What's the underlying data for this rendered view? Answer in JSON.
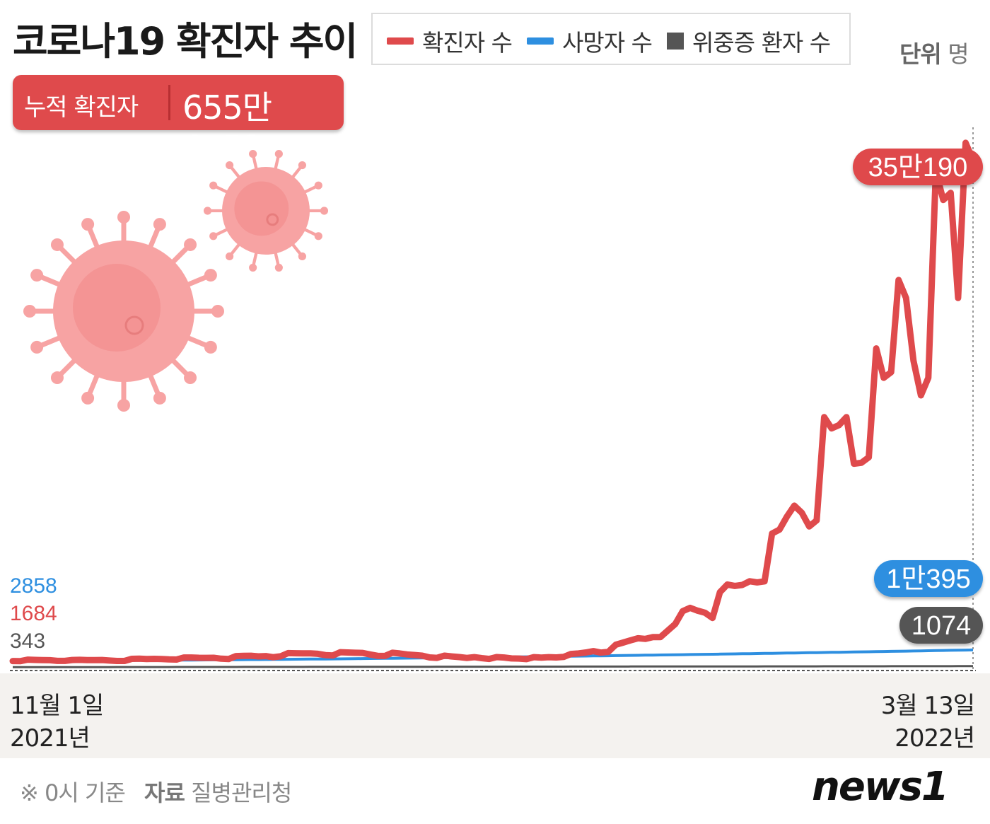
{
  "header": {
    "title": "코로나19 확진자 추이",
    "unit_label": "단위",
    "unit_value": "명"
  },
  "legend": [
    {
      "label": "확진자 수",
      "color": "#df4a4c",
      "shape": "line"
    },
    {
      "label": "사망자 수",
      "color": "#2e8fe0",
      "shape": "line"
    },
    {
      "label": "위중증 환자 수",
      "color": "#555555",
      "shape": "square"
    }
  ],
  "cumulative": {
    "label": "누적 확진자",
    "value": "655만6453"
  },
  "start_labels": {
    "blue": "2858",
    "red": "1684",
    "gray": "343"
  },
  "end_labels": {
    "red": "35만190",
    "blue": "1만395",
    "gray": "1074"
  },
  "x_axis": {
    "start_date": "11월 1일",
    "start_year": "2021년",
    "end_date": "3월 13일",
    "end_year": "2022년"
  },
  "footer": {
    "note": "※ 0시 기준",
    "source_label": "자료",
    "source": "질병관리청",
    "brand": "news1"
  },
  "colors": {
    "confirmed": "#df4a4c",
    "deaths": "#2e8fe0",
    "critical": "#555555",
    "virus": "#f7a3a3"
  },
  "chart_data": {
    "type": "line",
    "x_start": "2021-11-01",
    "x_end": "2022-03-13",
    "ylim": [
      0,
      380000
    ],
    "series": [
      {
        "name": "확진자 수",
        "color": "#df4a4c",
        "values": [
          1684,
          1589,
          2667,
          2482,
          2344,
          2248,
          1758,
          1758,
          2425,
          2520,
          2368,
          2324,
          2419,
          2006,
          1724,
          1718,
          3187,
          3292,
          3034,
          3206,
          3120,
          2827,
          2699,
          4116,
          4115,
          3938,
          3899,
          3925,
          3308,
          3032,
          5123,
          5265,
          5352,
          4944,
          5127,
          4324,
          4952,
          7175,
          7102,
          7022,
          6977,
          6689,
          5817,
          5567,
          7850,
          7622,
          7435,
          7314,
          6236,
          5318,
          5202,
          7456,
          6919,
          6233,
          5842,
          5419,
          4207,
          3865,
          5409,
          4875,
          4416,
          3833,
          4388,
          3716,
          3128,
          4444,
          4126,
          3511,
          3376,
          3005,
          4382,
          4072,
          4385,
          4192,
          4542,
          6603,
          7009,
          7630,
          8571,
          7513,
          8080,
          13012,
          14518,
          16096,
          17528,
          17079,
          18342,
          18341,
          22907,
          27443,
          36362,
          38691,
          36719,
          35286,
          31673,
          49567,
          54941,
          53926,
          54619,
          57177,
          56431,
          57170,
          90443,
          93135,
          102211,
          109831,
          104829,
          95362,
          99573,
          171452,
          163566,
          165889,
          171449,
          138993,
          139626,
          143487,
          219241,
          198803,
          202721,
          266853,
          254327,
          210716,
          186547,
          198799,
          342446,
          322551,
          327549,
          254327,
          362338,
          350190
        ],
        "start_value": 1684,
        "end_value": 350190
      },
      {
        "name": "사망자 수",
        "color": "#2e8fe0",
        "start_value": 2858,
        "end_value": 10395,
        "trend": "gradual increase"
      },
      {
        "name": "위중증 환자 수",
        "color": "#555555",
        "start_value": 343,
        "end_value": 1074,
        "trend": "slight increase"
      }
    ],
    "grid": false,
    "legend_position": "top"
  }
}
